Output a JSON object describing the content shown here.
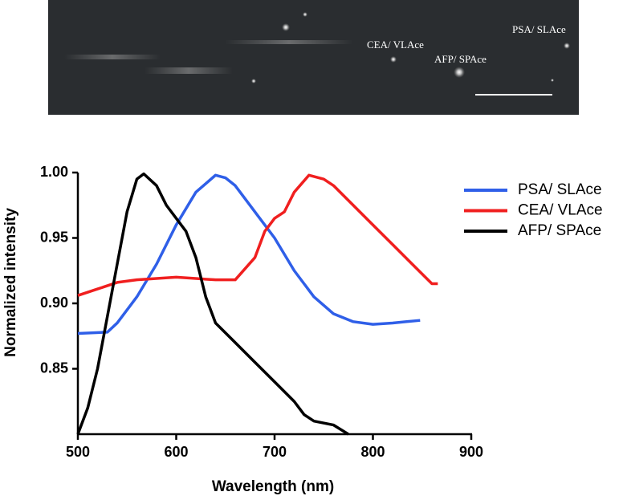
{
  "image": {
    "labels": [
      "PSA/ SLAce",
      "CEA/ VLAce",
      "AFP/ SPAce"
    ]
  },
  "chart_data": {
    "type": "line",
    "x_label": "Wavelength (nm)",
    "y_label": "Normalized intensity",
    "xlim": [
      500,
      900
    ],
    "xticks": [
      500,
      600,
      700,
      800,
      900
    ],
    "ylim": [
      0.8,
      1.0
    ],
    "yticks": [
      0.85,
      {
        "value": 0.9,
        "label": "0.90"
      },
      0.95,
      {
        "value": 1.0,
        "label": "1.00"
      }
    ],
    "legend": "right",
    "series": [
      {
        "name": "PSA/ SLAce",
        "color": "#2f5fe8",
        "x": [
          500,
          530,
          540,
          560,
          580,
          600,
          620,
          640,
          650,
          660,
          680,
          700,
          720,
          740,
          760,
          780,
          800,
          820,
          848
        ],
        "values": [
          0.877,
          0.878,
          0.885,
          0.905,
          0.93,
          0.96,
          0.985,
          0.998,
          0.996,
          0.99,
          0.97,
          0.95,
          0.925,
          0.905,
          0.892,
          0.886,
          0.884,
          0.885,
          0.887
        ]
      },
      {
        "name": "CEA/ VLAce",
        "color": "#f01f1f",
        "x": [
          500,
          520,
          540,
          560,
          600,
          620,
          640,
          660,
          680,
          690,
          700,
          710,
          720,
          735,
          750,
          760,
          780,
          800,
          820,
          840,
          860,
          866
        ],
        "values": [
          0.906,
          0.911,
          0.916,
          0.918,
          0.92,
          0.919,
          0.918,
          0.918,
          0.935,
          0.955,
          0.965,
          0.97,
          0.985,
          0.998,
          0.995,
          0.99,
          0.975,
          0.96,
          0.945,
          0.93,
          0.915,
          0.915
        ]
      },
      {
        "name": "AFP/ SPAce",
        "color": "#000000",
        "x": [
          500,
          510,
          520,
          530,
          540,
          550,
          560,
          567,
          580,
          590,
          600,
          610,
          620,
          630,
          640,
          660,
          680,
          700,
          720,
          730,
          740,
          760,
          775
        ],
        "values": [
          0.8,
          0.82,
          0.85,
          0.89,
          0.93,
          0.97,
          0.995,
          0.999,
          0.99,
          0.975,
          0.965,
          0.955,
          0.935,
          0.905,
          0.885,
          0.87,
          0.855,
          0.84,
          0.825,
          0.815,
          0.81,
          0.807,
          0.8
        ]
      }
    ]
  }
}
